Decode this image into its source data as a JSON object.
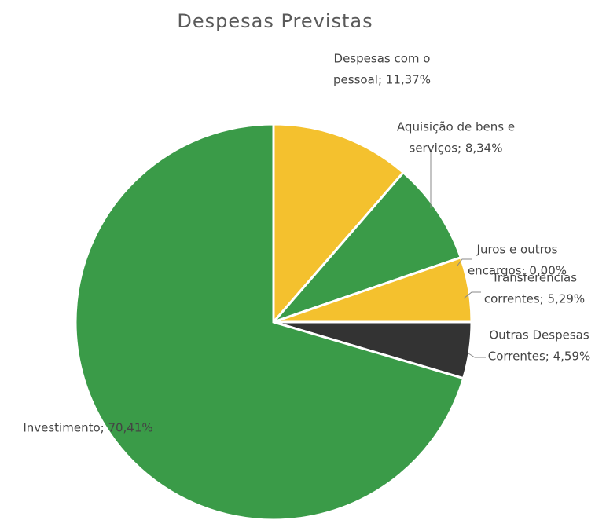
{
  "chart_data": {
    "type": "pie",
    "title": "Despesas Previstas",
    "values": [
      11.37,
      8.34,
      0.0,
      5.29,
      4.59,
      70.41
    ],
    "value_labels": [
      [
        "Despesas com o",
        "pessoal; 11,37%"
      ],
      [
        "Aquisição de bens e",
        "serviços; 8,34%"
      ],
      [
        "Juros e outros",
        "encargos; 0,00%"
      ],
      [
        "Transferências",
        "correntes; 5,29%"
      ],
      [
        "Outras Despesas",
        "Correntes; 4,59%"
      ],
      [
        "Investimento; 70,41%"
      ]
    ],
    "colors": [
      "#f4c12e",
      "#3a9b48",
      "#3a9b48",
      "#f4c12e",
      "#333333",
      "#3a9b48"
    ]
  }
}
